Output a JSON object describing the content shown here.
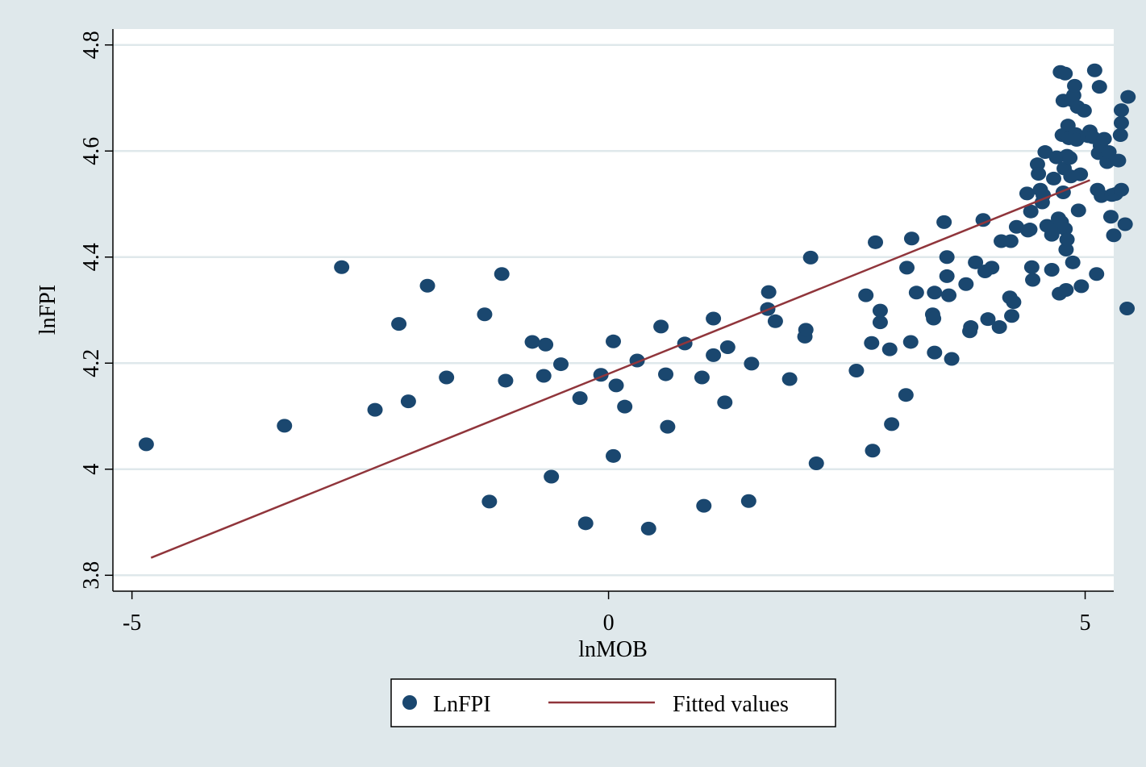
{
  "chart_data": {
    "type": "scatter",
    "xlabel": "lnMOB",
    "ylabel": "lnFPI",
    "xlim": [
      -5.2,
      5.3
    ],
    "ylim": [
      3.77,
      4.83
    ],
    "x_ticks": [
      -5,
      0,
      5
    ],
    "x_tick_labels": [
      "-5",
      "0",
      "5"
    ],
    "y_ticks": [
      3.8,
      4.0,
      4.2,
      4.4,
      4.6,
      4.8
    ],
    "y_tick_labels": [
      "3.8",
      "4",
      "4.2",
      "4.4",
      "4.6",
      "4.8"
    ],
    "grid": "horizontal",
    "legend_position": "bottom",
    "colors": {
      "background": "#dfe8eb",
      "plot_background": "#ffffff",
      "scatter": "#1a476f",
      "fit_line": "#90353b",
      "grid": "#dfe8eb"
    },
    "series": [
      {
        "name": "LnFPI",
        "type": "scatter",
        "points": [
          [
            -4.85,
            4.047
          ],
          [
            -3.4,
            4.082
          ],
          [
            -2.8,
            4.381
          ],
          [
            -2.45,
            4.112
          ],
          [
            -2.2,
            4.274
          ],
          [
            -2.1,
            4.128
          ],
          [
            -1.9,
            4.346
          ],
          [
            -1.7,
            4.173
          ],
          [
            -1.3,
            4.292
          ],
          [
            -1.25,
            3.939
          ],
          [
            -1.12,
            4.368
          ],
          [
            -1.08,
            4.167
          ],
          [
            -0.8,
            4.24
          ],
          [
            -0.68,
            4.176
          ],
          [
            -0.66,
            4.235
          ],
          [
            -0.6,
            3.986
          ],
          [
            -0.5,
            4.198
          ],
          [
            -0.3,
            4.134
          ],
          [
            -0.24,
            3.898
          ],
          [
            -0.08,
            4.178
          ],
          [
            0.05,
            4.241
          ],
          [
            0.05,
            4.025
          ],
          [
            0.08,
            4.158
          ],
          [
            0.17,
            4.118
          ],
          [
            0.3,
            4.205
          ],
          [
            0.42,
            3.888
          ],
          [
            0.55,
            4.269
          ],
          [
            0.6,
            4.179
          ],
          [
            0.62,
            4.08
          ],
          [
            0.8,
            4.237
          ],
          [
            0.98,
            4.173
          ],
          [
            1.0,
            3.931
          ],
          [
            1.1,
            4.284
          ],
          [
            1.1,
            4.215
          ],
          [
            1.22,
            4.126
          ],
          [
            1.25,
            4.23
          ],
          [
            1.47,
            3.94
          ],
          [
            1.5,
            4.199
          ],
          [
            1.67,
            4.302
          ],
          [
            1.68,
            4.334
          ],
          [
            1.75,
            4.279
          ],
          [
            1.9,
            4.17
          ],
          [
            2.06,
            4.25
          ],
          [
            2.07,
            4.263
          ],
          [
            2.12,
            4.399
          ],
          [
            2.18,
            4.011
          ],
          [
            2.6,
            4.186
          ],
          [
            2.7,
            4.328
          ],
          [
            2.76,
            4.238
          ],
          [
            2.77,
            4.035
          ],
          [
            2.8,
            4.428
          ],
          [
            2.85,
            4.277
          ],
          [
            2.85,
            4.299
          ],
          [
            2.95,
            4.226
          ],
          [
            2.97,
            4.085
          ],
          [
            3.12,
            4.14
          ],
          [
            3.13,
            4.38
          ],
          [
            3.17,
            4.24
          ],
          [
            3.18,
            4.435
          ],
          [
            3.23,
            4.333
          ],
          [
            3.4,
            4.292
          ],
          [
            3.41,
            4.284
          ],
          [
            3.42,
            4.333
          ],
          [
            3.42,
            4.22
          ],
          [
            3.52,
            4.466
          ],
          [
            3.55,
            4.4
          ],
          [
            3.55,
            4.364
          ],
          [
            3.57,
            4.328
          ],
          [
            3.6,
            4.208
          ],
          [
            3.75,
            4.349
          ],
          [
            3.79,
            4.26
          ],
          [
            3.8,
            4.268
          ],
          [
            3.85,
            4.39
          ],
          [
            3.93,
            4.47
          ],
          [
            3.95,
            4.373
          ],
          [
            3.98,
            4.283
          ],
          [
            4.02,
            4.38
          ],
          [
            4.1,
            4.268
          ],
          [
            4.12,
            4.43
          ],
          [
            4.21,
            4.324
          ],
          [
            4.22,
            4.43
          ],
          [
            4.23,
            4.289
          ],
          [
            4.25,
            4.315
          ],
          [
            4.28,
            4.457
          ],
          [
            4.39,
            4.52
          ],
          [
            4.4,
            4.45
          ],
          [
            4.42,
            4.452
          ],
          [
            4.43,
            4.486
          ],
          [
            4.44,
            4.381
          ],
          [
            4.45,
            4.357
          ],
          [
            4.5,
            4.575
          ],
          [
            4.51,
            4.557
          ],
          [
            4.53,
            4.527
          ],
          [
            4.55,
            4.503
          ],
          [
            4.56,
            4.517
          ],
          [
            4.58,
            4.598
          ],
          [
            4.6,
            4.459
          ],
          [
            4.65,
            4.376
          ],
          [
            4.65,
            4.442
          ],
          [
            4.67,
            4.548
          ],
          [
            4.68,
            4.453
          ],
          [
            4.7,
            4.588
          ],
          [
            4.72,
            4.473
          ],
          [
            4.73,
            4.331
          ],
          [
            4.74,
            4.749
          ],
          [
            4.75,
            4.466
          ],
          [
            4.76,
            4.63
          ],
          [
            4.77,
            4.522
          ],
          [
            4.77,
            4.695
          ],
          [
            4.78,
            4.567
          ],
          [
            4.79,
            4.746
          ],
          [
            4.79,
            4.453
          ],
          [
            4.8,
            4.414
          ],
          [
            4.8,
            4.338
          ],
          [
            4.81,
            4.433
          ],
          [
            4.81,
            4.591
          ],
          [
            4.82,
            4.648
          ],
          [
            4.83,
            4.624
          ],
          [
            4.84,
            4.587
          ],
          [
            4.85,
            4.552
          ],
          [
            4.86,
            4.696
          ],
          [
            4.87,
            4.39
          ],
          [
            4.88,
            4.705
          ],
          [
            4.89,
            4.723
          ],
          [
            4.9,
            4.632
          ],
          [
            4.91,
            4.621
          ],
          [
            4.92,
            4.683
          ],
          [
            4.93,
            4.488
          ],
          [
            4.95,
            4.556
          ],
          [
            4.96,
            4.345
          ],
          [
            4.99,
            4.676
          ],
          [
            5.03,
            4.628
          ],
          [
            5.05,
            4.637
          ],
          [
            5.08,
            4.626
          ],
          [
            5.1,
            4.752
          ],
          [
            5.12,
            4.368
          ],
          [
            5.13,
            4.527
          ],
          [
            5.14,
            4.596
          ],
          [
            5.15,
            4.721
          ],
          [
            5.16,
            4.61
          ],
          [
            5.17,
            4.515
          ],
          [
            5.2,
            4.623
          ],
          [
            5.23,
            4.579
          ],
          [
            5.25,
            4.598
          ],
          [
            5.27,
            4.476
          ],
          [
            5.28,
            4.517
          ],
          [
            5.3,
            4.441
          ],
          [
            5.32,
            4.519
          ],
          [
            5.35,
            4.582
          ],
          [
            5.37,
            4.63
          ],
          [
            5.38,
            4.653
          ],
          [
            5.38,
            4.677
          ],
          [
            5.38,
            4.527
          ],
          [
            5.42,
            4.462
          ],
          [
            5.44,
            4.303
          ],
          [
            5.45,
            4.702
          ]
        ]
      },
      {
        "name": "Fitted values",
        "type": "line",
        "points": [
          [
            -4.8,
            3.833
          ],
          [
            5.05,
            4.545
          ]
        ]
      }
    ]
  }
}
